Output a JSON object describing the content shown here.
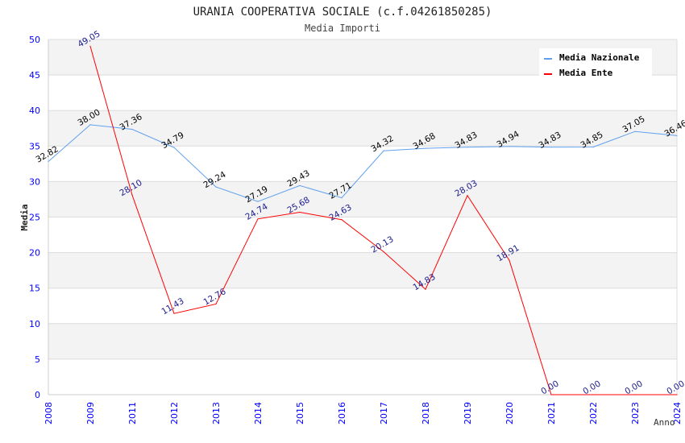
{
  "chart_data": {
    "type": "line",
    "title": "URANIA COOPERATIVA SOCIALE (c.f.04261850285)",
    "subtitle": "Media Importi",
    "xlabel": "Anno",
    "ylabel": "Media",
    "ylim": [
      0,
      50
    ],
    "yticks": [
      "0",
      "5",
      "10",
      "15",
      "20",
      "25",
      "30",
      "35",
      "40",
      "45",
      "50"
    ],
    "categories": [
      "2008",
      "2009",
      "2011",
      "2012",
      "2013",
      "2014",
      "2015",
      "2016",
      "2017",
      "2018",
      "2019",
      "2020",
      "2021",
      "2022",
      "2023",
      "2024"
    ],
    "grid": true,
    "legend_position": "top-right",
    "series": [
      {
        "name": "Media Nazionale",
        "color": "#5fa0f0",
        "label_color": "#000000",
        "values": [
          32.82,
          38.0,
          37.36,
          34.79,
          29.24,
          27.19,
          29.43,
          27.71,
          34.32,
          34.68,
          34.83,
          34.94,
          34.83,
          34.85,
          37.05,
          36.46
        ],
        "labels": [
          "32.82",
          "38.00",
          "37.36",
          "34.79",
          "29.24",
          "27.19",
          "29.43",
          "27.71",
          "34.32",
          "34.68",
          "34.83",
          "34.94",
          "34.83",
          "34.85",
          "37.05",
          "36.46"
        ]
      },
      {
        "name": "Media Ente",
        "color": "#ff0000",
        "label_color": "#1a1a8c",
        "values": [
          null,
          49.05,
          28.1,
          11.43,
          12.76,
          24.74,
          25.68,
          24.63,
          20.13,
          14.83,
          28.03,
          18.91,
          0.0,
          0.0,
          0.0,
          0.0
        ],
        "labels": [
          null,
          "49.05",
          "28.10",
          "11.43",
          "12.76",
          "24.74",
          "25.68",
          "24.63",
          "20.13",
          "14.83",
          "28.03",
          "18.91",
          "0.00",
          "0.00",
          "0.00",
          "0.00"
        ]
      }
    ]
  }
}
